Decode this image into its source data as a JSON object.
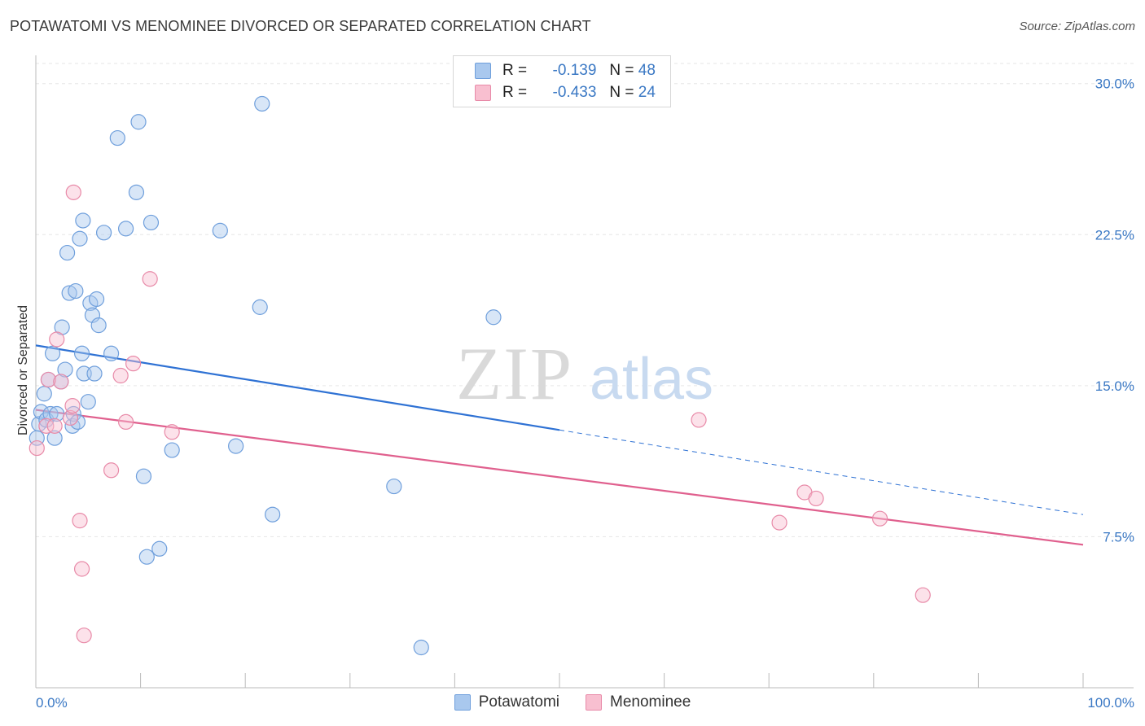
{
  "header": {
    "title": "POTAWATOMI VS MENOMINEE DIVORCED OR SEPARATED CORRELATION CHART",
    "source": "Source: ZipAtlas.com"
  },
  "watermark": {
    "zip": "ZIP",
    "atlas": "atlas"
  },
  "legend": {
    "rows": [
      {
        "r_label": "R =",
        "r_value": "-0.139",
        "n_label": "N =",
        "n_value": "48",
        "color": "#a9c8ee",
        "stroke": "#6f9fdc"
      },
      {
        "r_label": "R =",
        "r_value": "-0.433",
        "n_label": "N =",
        "n_value": "24",
        "color": "#f8bfd0",
        "stroke": "#e88aa8"
      }
    ]
  },
  "bottom_legend": [
    {
      "label": "Potawatomi",
      "color": "#a9c8ee",
      "stroke": "#6f9fdc"
    },
    {
      "label": "Menominee",
      "color": "#f8bfd0",
      "stroke": "#e88aa8"
    }
  ],
  "chart_data": {
    "type": "scatter",
    "title": "POTAWATOMI VS MENOMINEE DIVORCED OR SEPARATED CORRELATION CHART",
    "xlabel": "",
    "ylabel": "Divorced or Separated",
    "xlim": [
      0,
      100
    ],
    "ylim": [
      0,
      31
    ],
    "x_tick_labels": [
      "0.0%",
      "100.0%"
    ],
    "y_ticks": [
      7.5,
      15.0,
      22.5,
      30.0
    ],
    "y_tick_labels": [
      "7.5%",
      "15.0%",
      "22.5%",
      "30.0%"
    ],
    "grid": "horizontal dashed",
    "legend_position": "top-center",
    "series": [
      {
        "name": "Potawatomi",
        "color": "#6f9fdc",
        "fill": "#a9c8ee",
        "points": [
          [
            0.3,
            13.1
          ],
          [
            0.5,
            13.7
          ],
          [
            0.8,
            14.6
          ],
          [
            1.0,
            13.3
          ],
          [
            1.2,
            15.3
          ],
          [
            1.4,
            13.6
          ],
          [
            1.6,
            16.6
          ],
          [
            1.8,
            12.4
          ],
          [
            2.0,
            13.6
          ],
          [
            2.4,
            15.2
          ],
          [
            2.5,
            17.9
          ],
          [
            2.8,
            15.8
          ],
          [
            3.0,
            21.6
          ],
          [
            3.2,
            19.6
          ],
          [
            3.5,
            13.0
          ],
          [
            3.6,
            13.6
          ],
          [
            3.8,
            19.7
          ],
          [
            4.0,
            13.2
          ],
          [
            4.2,
            22.3
          ],
          [
            4.4,
            16.6
          ],
          [
            4.5,
            23.2
          ],
          [
            4.6,
            15.6
          ],
          [
            5.0,
            14.2
          ],
          [
            5.2,
            19.1
          ],
          [
            5.4,
            18.5
          ],
          [
            5.6,
            15.6
          ],
          [
            5.8,
            19.3
          ],
          [
            6.0,
            18.0
          ],
          [
            6.5,
            22.6
          ],
          [
            7.2,
            16.6
          ],
          [
            7.8,
            27.3
          ],
          [
            8.6,
            22.8
          ],
          [
            9.8,
            28.1
          ],
          [
            9.6,
            24.6
          ],
          [
            10.3,
            10.5
          ],
          [
            10.6,
            6.5
          ],
          [
            11.0,
            23.1
          ],
          [
            11.8,
            6.9
          ],
          [
            13.0,
            11.8
          ],
          [
            17.6,
            22.7
          ],
          [
            19.1,
            12.0
          ],
          [
            21.4,
            18.9
          ],
          [
            21.6,
            29.0
          ],
          [
            22.6,
            8.6
          ],
          [
            34.2,
            10.0
          ],
          [
            36.8,
            2.0
          ],
          [
            43.7,
            18.4
          ],
          [
            0.1,
            12.4
          ]
        ],
        "trend": {
          "x0": 0,
          "y0": 17.0,
          "x1": 50,
          "y1": 12.8,
          "dashed_to_x": 100,
          "dashed_to_y": 8.6
        }
      },
      {
        "name": "Menominee",
        "color": "#e88aa8",
        "fill": "#f8bfd0",
        "points": [
          [
            0.1,
            11.9
          ],
          [
            1.0,
            13.0
          ],
          [
            1.2,
            15.3
          ],
          [
            1.8,
            13.0
          ],
          [
            2.0,
            17.3
          ],
          [
            2.4,
            15.2
          ],
          [
            3.3,
            13.4
          ],
          [
            3.5,
            14.0
          ],
          [
            3.6,
            24.6
          ],
          [
            4.2,
            8.3
          ],
          [
            4.4,
            5.9
          ],
          [
            4.6,
            2.6
          ],
          [
            7.2,
            10.8
          ],
          [
            8.1,
            15.5
          ],
          [
            8.6,
            13.2
          ],
          [
            9.3,
            16.1
          ],
          [
            10.9,
            20.3
          ],
          [
            13.0,
            12.7
          ],
          [
            63.3,
            13.3
          ],
          [
            71.0,
            8.2
          ],
          [
            73.4,
            9.7
          ],
          [
            74.5,
            9.4
          ],
          [
            80.6,
            8.4
          ],
          [
            84.7,
            4.6
          ]
        ],
        "trend": {
          "x0": 0,
          "y0": 13.8,
          "x1": 100,
          "y1": 7.1
        }
      }
    ]
  }
}
